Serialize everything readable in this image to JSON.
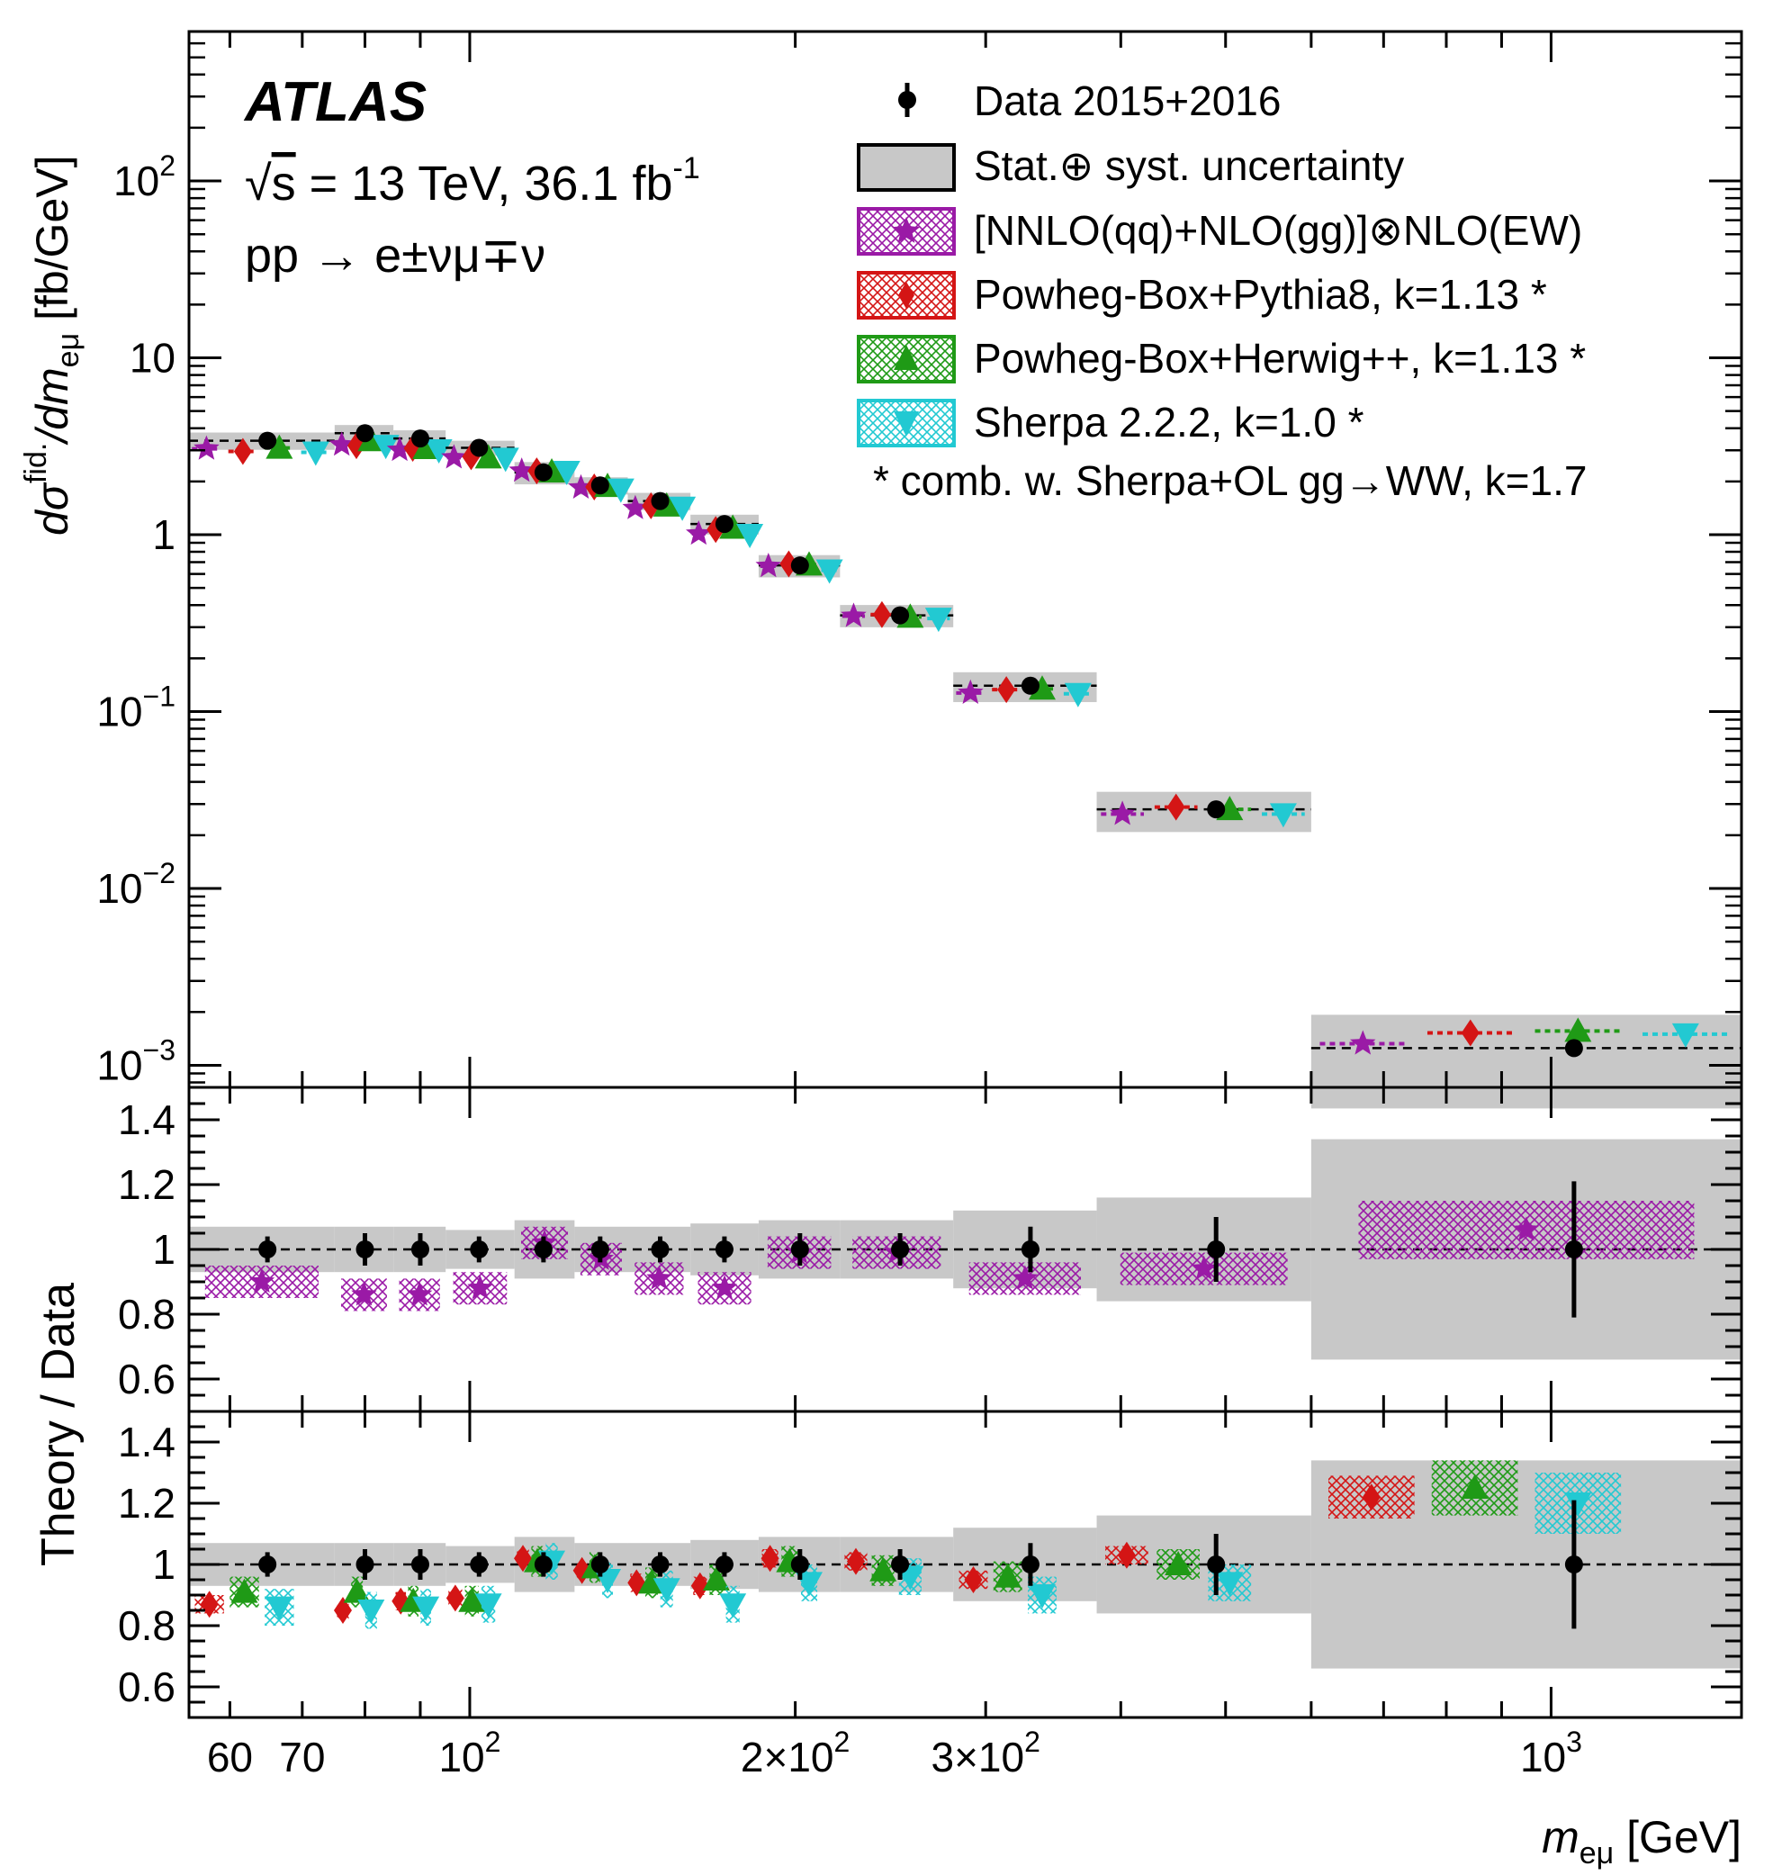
{
  "atlas": {
    "label": "ATLAS",
    "energy_prefix": "√",
    "energy_s": "s",
    "energy_main": " = 13 TeV, 36.1 fb",
    "energy_exp": "-1",
    "process": "pp → e±νμ∓ν"
  },
  "legend": [
    {
      "key": "data",
      "text": "Data 2015+2016",
      "color": "#000000",
      "style": "marker"
    },
    {
      "key": "unc",
      "text": "Stat.⊕ syst. uncertainty",
      "color": "#c8c8c8",
      "style": "box"
    },
    {
      "key": "nnlo",
      "text": "[NNLO(qq)+NLO(gg)]⊗NLO(EW)",
      "color": "#9a1aa6",
      "marker": "star"
    },
    {
      "key": "powpy",
      "text": "Powheg-Box+Pythia8, k=1.13 *",
      "color": "#d41515",
      "marker": "diamond"
    },
    {
      "key": "powhw",
      "text": "Powheg-Box+Herwig++, k=1.13 *",
      "color": "#1f9a16",
      "marker": "triangle-up"
    },
    {
      "key": "sherpa",
      "text": "Sherpa 2.2.2, k=1.0 *",
      "color": "#22c9d2",
      "marker": "triangle-down"
    }
  ],
  "legend_note": "* comb. w. Sherpa+OL gg→WW, k=1.7",
  "axes": {
    "xlabel_main": "m",
    "xlabel_sub": "eμ",
    "xlabel_unit": " [GeV]",
    "ylabel_main": "dσ",
    "ylabel_sup": "fid.",
    "ylabel_mid": "/dm",
    "ylabel_sub": "eμ",
    "ylabel_unit": "  [fb/GeV]",
    "ratio_ylabel": "Theory / Data",
    "x_tick_labels": [
      {
        "value": 60,
        "text": "60"
      },
      {
        "value": 70,
        "text": "70"
      },
      {
        "value": 100,
        "base": "10",
        "exp": "2"
      },
      {
        "value": 200,
        "base": "2×10",
        "exp": "2"
      },
      {
        "value": 300,
        "base": "3×10",
        "exp": "2"
      },
      {
        "value": 1000,
        "base": "10",
        "exp": "3"
      }
    ],
    "y_tick_labels": [
      {
        "value": 100,
        "base": "10",
        "exp": "2"
      },
      {
        "value": 10,
        "base": "10",
        "exp": ""
      },
      {
        "value": 1,
        "base": "1",
        "exp": ""
      },
      {
        "value": 0.1,
        "base": "10",
        "exp": "−1"
      },
      {
        "value": 0.01,
        "base": "10",
        "exp": "−2"
      },
      {
        "value": 0.001,
        "base": "10",
        "exp": "−3"
      }
    ],
    "ratio_tick_labels": [
      "0.6",
      "0.8",
      "1",
      "1.2",
      "1.4"
    ]
  },
  "chart_data": {
    "type": "scatter",
    "title": "ATLAS √s = 13 TeV, 36.1 fb-1, pp → e±νμ∓ν",
    "xlabel": "m_eμ [GeV]",
    "ylabel": "dσ^fid./dm_eμ [fb/GeV]",
    "xscale": "log",
    "yscale": "log",
    "xlim": [
      55,
      1500
    ],
    "ylim": [
      0.00075,
      700
    ],
    "ratio_ylim": [
      0.5,
      1.5
    ],
    "bin_edges": [
      55,
      75,
      85,
      95,
      110,
      125,
      140,
      160,
      185,
      220,
      280,
      380,
      600,
      1500
    ],
    "data": {
      "x": [
        65,
        80,
        90,
        102,
        117,
        132,
        150,
        172,
        202,
        250,
        330,
        490,
        1050
      ],
      "values": [
        3.4,
        3.75,
        3.5,
        3.1,
        2.25,
        1.9,
        1.55,
        1.15,
        0.67,
        0.35,
        0.14,
        0.028,
        0.00125
      ],
      "ratio_err": [
        0.04,
        0.05,
        0.05,
        0.04,
        0.04,
        0.04,
        0.04,
        0.04,
        0.05,
        0.05,
        0.07,
        0.1,
        0.21
      ]
    },
    "uncertainty_band_rel": [
      0.07,
      0.07,
      0.07,
      0.06,
      0.09,
      0.07,
      0.07,
      0.08,
      0.09,
      0.09,
      0.12,
      0.16,
      0.34
    ],
    "series": [
      {
        "name": "[NNLO(qq)+NLO(gg)]⊗NLO(EW)",
        "key": "nnlo",
        "ratio": [
          0.9,
          0.86,
          0.86,
          0.88,
          1.02,
          0.97,
          0.91,
          0.88,
          0.99,
          0.99,
          0.91,
          0.94,
          1.06
        ],
        "ratio_unc": 0.05
      },
      {
        "name": "Powheg-Box+Pythia8, k=1.13 *",
        "key": "powpy",
        "ratio": [
          0.87,
          0.85,
          0.88,
          0.89,
          1.02,
          0.98,
          0.94,
          0.93,
          1.02,
          1.01,
          0.95,
          1.03,
          1.22
        ],
        "ratio_unc": 0.03
      },
      {
        "name": "Powheg-Box+Herwig++, k=1.13 *",
        "key": "powhw",
        "ratio": [
          0.91,
          0.91,
          0.88,
          0.88,
          1.01,
          0.99,
          0.94,
          0.95,
          1.01,
          0.98,
          0.96,
          1.0,
          1.25
        ],
        "ratio_unc": 0.05
      },
      {
        "name": "Sherpa 2.2.2, k=1.0 *",
        "key": "sherpa",
        "ratio": [
          0.86,
          0.85,
          0.86,
          0.87,
          1.01,
          0.95,
          0.92,
          0.87,
          0.94,
          0.96,
          0.9,
          0.94,
          1.2
        ],
        "ratio_unc": 0.06
      }
    ]
  }
}
